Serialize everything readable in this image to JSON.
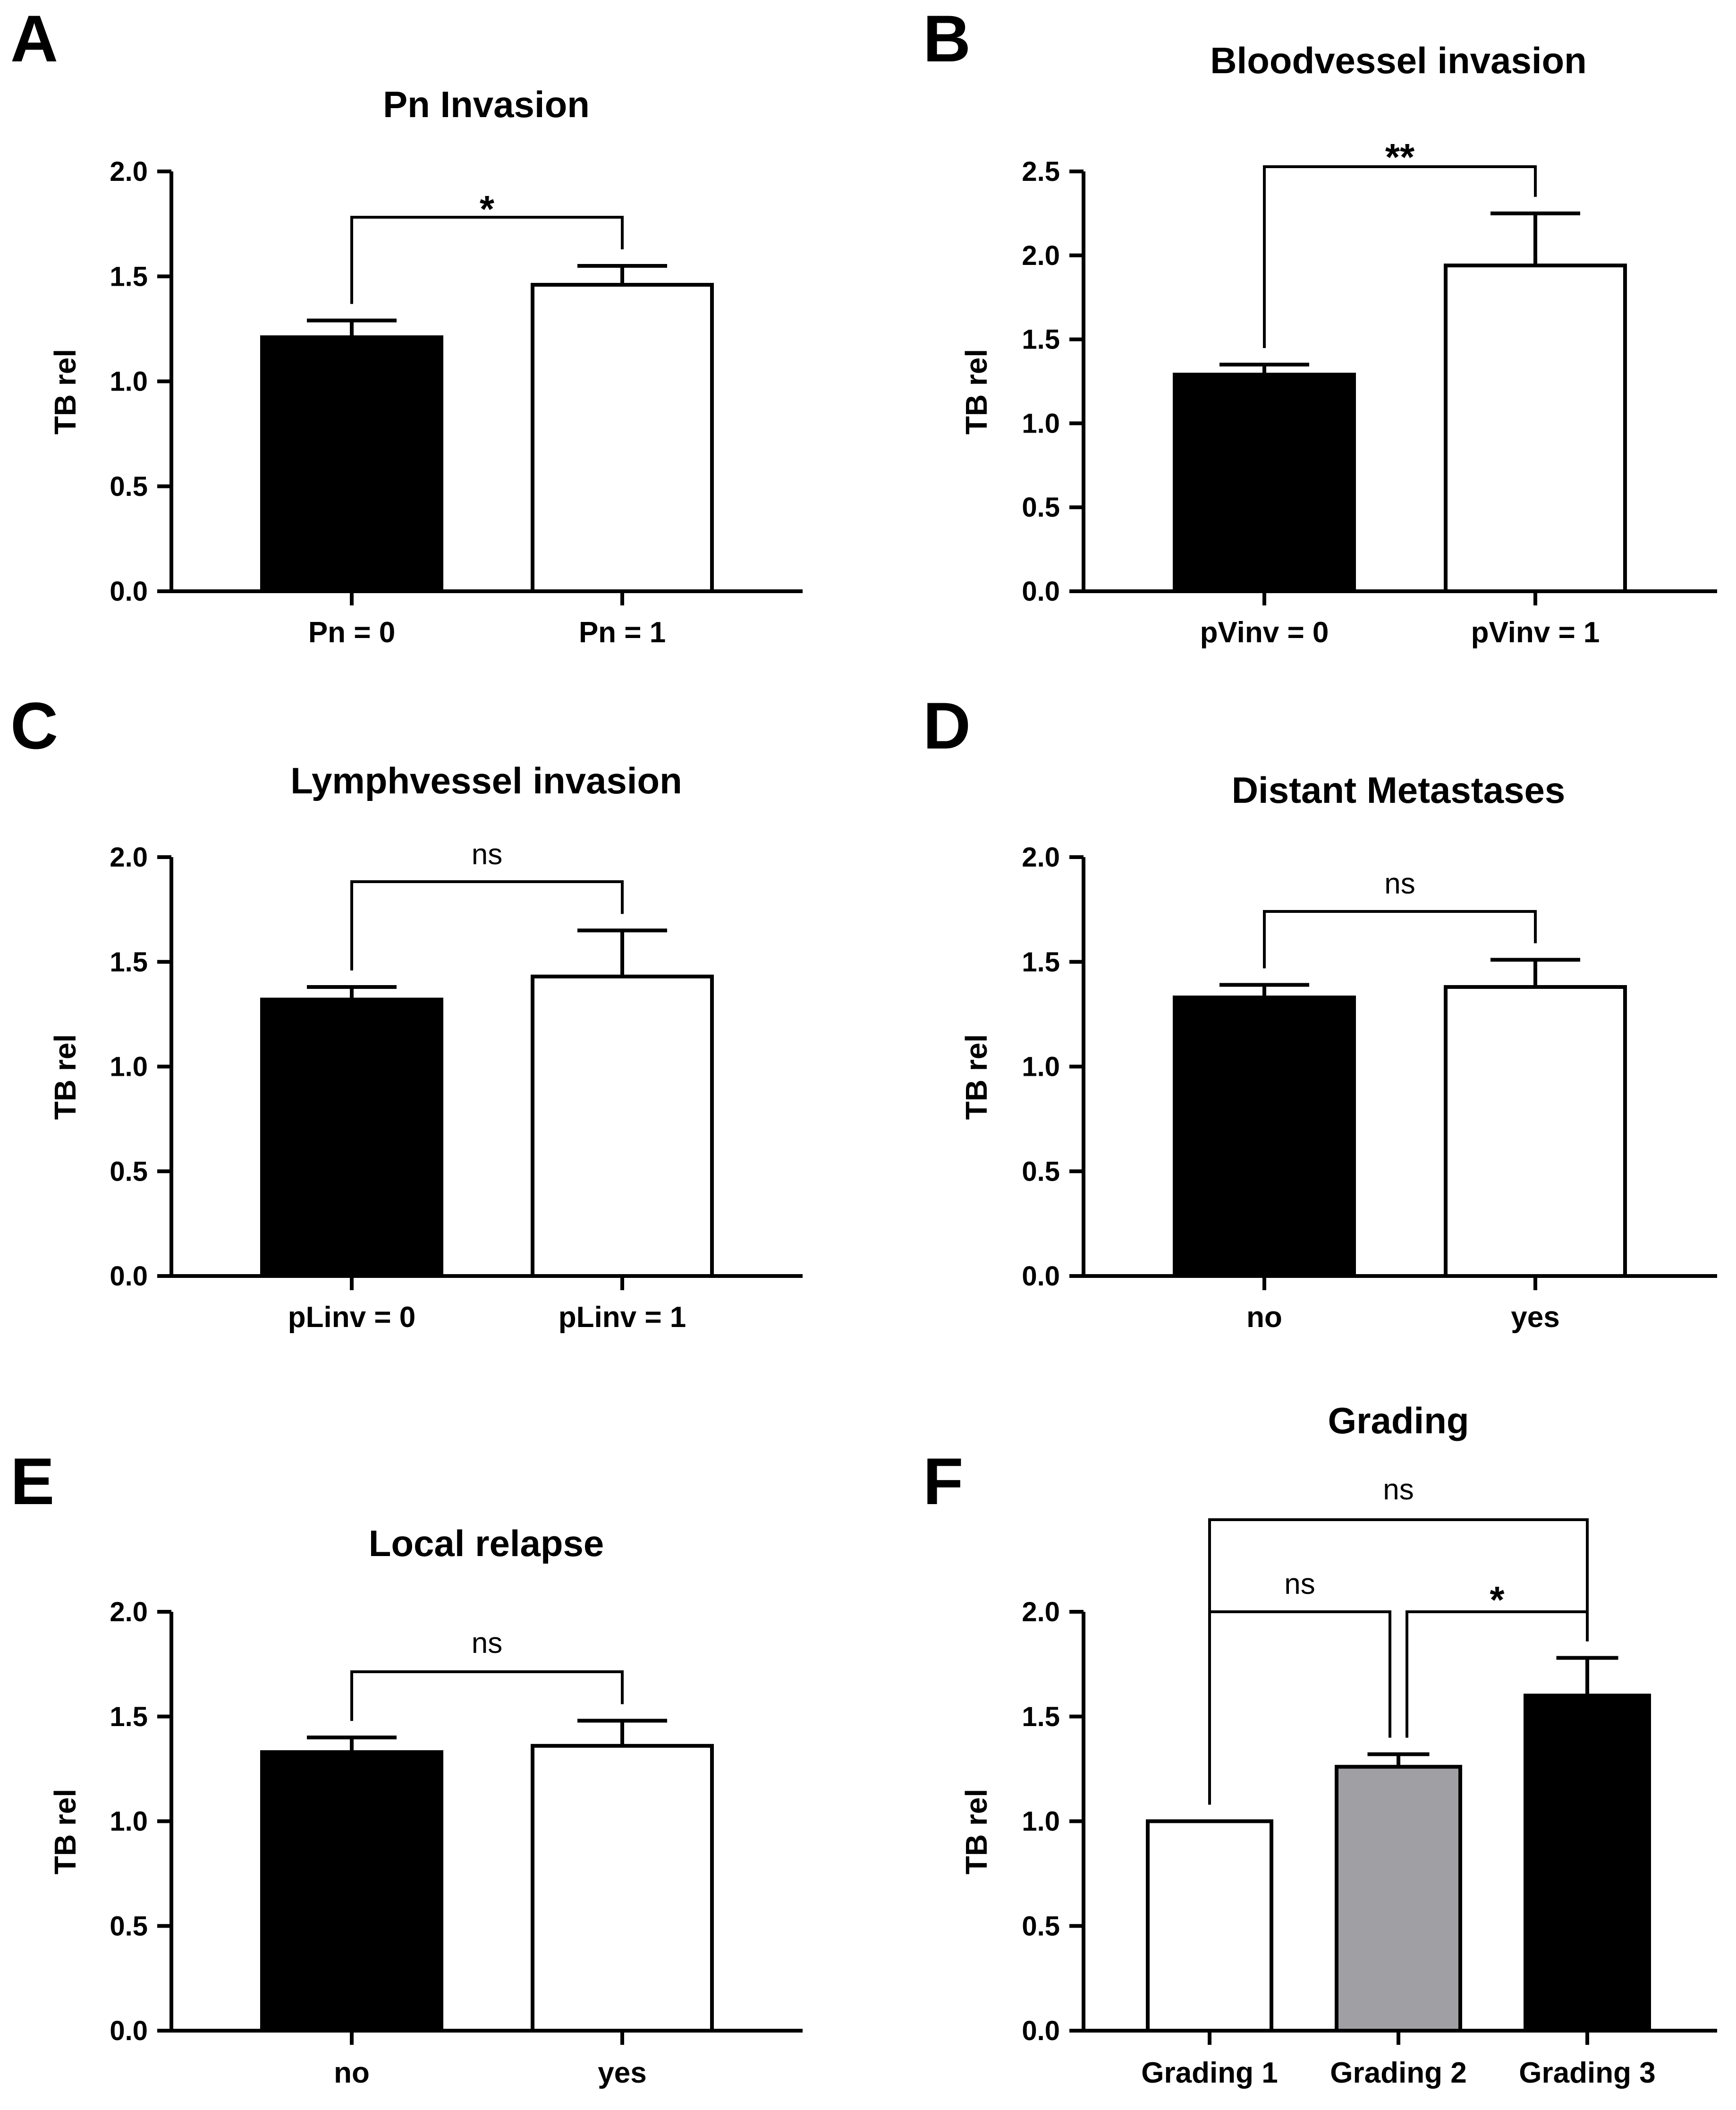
{
  "figure": {
    "style": {
      "stroke": "#000000",
      "background": "#ffffff"
    }
  },
  "chart_data": [
    {
      "panel": "A",
      "type": "bar",
      "title": "Pn Invasion",
      "ylabel": "TB rel",
      "ylim": [
        0,
        2.0
      ],
      "yticks": [
        "0.0",
        "0.5",
        "1.0",
        "1.5",
        "2.0"
      ],
      "categories": [
        "Pn = 0",
        "Pn = 1"
      ],
      "values": [
        1.21,
        1.46
      ],
      "errors": [
        0.08,
        0.09
      ],
      "colors": [
        "#000000",
        "#ffffff"
      ],
      "significance": [
        {
          "from": 0,
          "to": 1,
          "label": "*"
        }
      ]
    },
    {
      "panel": "B",
      "type": "bar",
      "title": "Bloodvessel invasion",
      "ylabel": "TB rel",
      "ylim": [
        0,
        2.5
      ],
      "yticks": [
        "0.0",
        "0.5",
        "1.0",
        "1.5",
        "2.0",
        "2.5"
      ],
      "categories": [
        "pVinv = 0",
        "pVinv = 1"
      ],
      "values": [
        1.29,
        1.94
      ],
      "errors": [
        0.06,
        0.31
      ],
      "colors": [
        "#000000",
        "#ffffff"
      ],
      "significance": [
        {
          "from": 0,
          "to": 1,
          "label": "**"
        }
      ]
    },
    {
      "panel": "C",
      "type": "bar",
      "title": "Lymphvessel invasion",
      "ylabel": "TB rel",
      "ylim": [
        0,
        2.0
      ],
      "yticks": [
        "0.0",
        "0.5",
        "1.0",
        "1.5",
        "2.0"
      ],
      "categories": [
        "pLinv = 0",
        "pLinv = 1"
      ],
      "values": [
        1.32,
        1.43
      ],
      "errors": [
        0.06,
        0.22
      ],
      "colors": [
        "#000000",
        "#ffffff"
      ],
      "significance": [
        {
          "from": 0,
          "to": 1,
          "label": "ns"
        }
      ]
    },
    {
      "panel": "D",
      "type": "bar",
      "title": "Distant Metastases",
      "ylabel": "TB rel",
      "ylim": [
        0,
        2.0
      ],
      "yticks": [
        "0.0",
        "0.5",
        "1.0",
        "1.5",
        "2.0"
      ],
      "categories": [
        "no",
        "yes"
      ],
      "values": [
        1.33,
        1.38
      ],
      "errors": [
        0.06,
        0.13
      ],
      "colors": [
        "#000000",
        "#ffffff"
      ],
      "significance": [
        {
          "from": 0,
          "to": 1,
          "label": "ns"
        }
      ]
    },
    {
      "panel": "E",
      "type": "bar",
      "title": "Local relapse",
      "ylabel": "TB rel",
      "ylim": [
        0,
        2.0
      ],
      "yticks": [
        "0.0",
        "0.5",
        "1.0",
        "1.5",
        "2.0"
      ],
      "categories": [
        "no",
        "yes"
      ],
      "values": [
        1.33,
        1.36
      ],
      "errors": [
        0.07,
        0.12
      ],
      "colors": [
        "#000000",
        "#ffffff"
      ],
      "significance": [
        {
          "from": 0,
          "to": 1,
          "label": "ns"
        }
      ]
    },
    {
      "panel": "F",
      "type": "bar",
      "title": "Grading",
      "ylabel": "TB rel",
      "ylim": [
        0,
        2.0
      ],
      "yticks": [
        "0.0",
        "0.5",
        "1.0",
        "1.5",
        "2.0"
      ],
      "categories": [
        "Grading 1",
        "Grading 2",
        "Grading 3"
      ],
      "values": [
        1.0,
        1.26,
        1.6
      ],
      "errors": [
        0,
        0.06,
        0.18
      ],
      "colors": [
        "#ffffff",
        "#a0a0a4",
        "#000000"
      ],
      "significance": [
        {
          "from": 0,
          "to": 2,
          "label": "ns"
        },
        {
          "from": 0,
          "to": 1,
          "label": "ns"
        },
        {
          "from": 1,
          "to": 2,
          "label": "*"
        }
      ]
    }
  ]
}
